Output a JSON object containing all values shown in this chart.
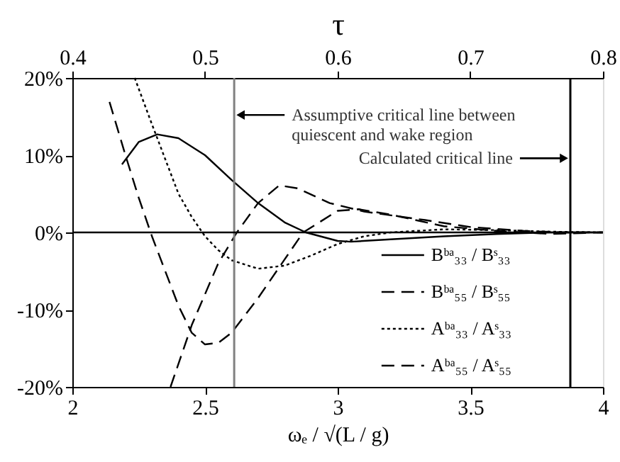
{
  "chart_data": {
    "type": "line",
    "xlabel": "ωₑ / √(L / g)",
    "x2label": "τ",
    "xlim": [
      2,
      4
    ],
    "xticks": [
      2,
      2.5,
      3,
      3.5,
      4
    ],
    "x2lim": [
      0.4,
      0.8
    ],
    "x2ticks": [
      0.4,
      0.5,
      0.6,
      0.7,
      0.8
    ],
    "ylim": [
      -20,
      20
    ],
    "yticks": [
      {
        "value": -20,
        "label": "-20%"
      },
      {
        "value": -10,
        "label": "-10%"
      },
      {
        "value": 0,
        "label": "0%"
      },
      {
        "value": 10,
        "label": "10%"
      },
      {
        "value": 20,
        "label": "20%"
      }
    ],
    "grid": false,
    "legend": "bottom right",
    "series": [
      {
        "name": "Bᵇᵃ₃₃ / Bˢ₃₃",
        "color": "#000000",
        "line_style": "solid",
        "x": [
          2.187,
          2.25,
          2.32,
          2.4,
          2.5,
          2.6,
          2.7,
          2.8,
          2.88,
          3.0,
          3.05,
          3.2,
          3.4,
          3.6,
          3.8,
          4.0
        ],
        "values": [
          8.8,
          11.7,
          12.7,
          12.2,
          10,
          6.8,
          3.8,
          1.3,
          0,
          -1.1,
          -1.2,
          -0.9,
          -0.5,
          -0.2,
          0,
          0
        ]
      },
      {
        "name": "Bᵇᵃ₅₅ / Bˢ₅₅",
        "color": "#000000",
        "line_style": "dashed",
        "x": [
          2.14,
          2.2,
          2.25,
          2.3,
          2.35,
          2.4,
          2.45,
          2.5,
          2.55,
          2.6,
          2.7,
          2.8,
          2.87,
          3.0,
          3.08,
          3.2,
          3.4,
          3.6,
          3.8,
          4.0
        ],
        "values": [
          16.9,
          10,
          4.5,
          -0.5,
          -5,
          -9.5,
          -13,
          -14.5,
          -14.3,
          -13,
          -8.5,
          -3.5,
          0,
          2.8,
          3.0,
          2.3,
          0.8,
          0.2,
          -0.2,
          0
        ]
      },
      {
        "name": "Aᵇᵃ₃₃ / Aˢ₃₃",
        "color": "#000000",
        "line_style": "dotted",
        "x": [
          2.235,
          2.3,
          2.35,
          2.4,
          2.45,
          2.5,
          2.55,
          2.6,
          2.7,
          2.8,
          2.9,
          3.0,
          3.1,
          3.2,
          3.4,
          3.6,
          3.8,
          4.0
        ],
        "values": [
          20,
          14,
          9.5,
          5,
          2,
          -0.5,
          -2.3,
          -3.6,
          -4.7,
          -4.3,
          -3,
          -1.5,
          -0.5,
          0,
          0.4,
          0.3,
          0.1,
          0
        ]
      },
      {
        "name": "Aᵇᵃ₅₅ / Aˢ₅₅",
        "color": "#000000",
        "line_style": "dashed",
        "x": [
          2.37,
          2.45,
          2.55,
          2.62,
          2.7,
          2.78,
          2.85,
          2.97,
          3.1,
          3.33,
          3.5,
          3.7,
          3.85,
          4.0
        ],
        "values": [
          -20,
          -12,
          -4,
          0,
          3.8,
          6.1,
          5.7,
          3.8,
          2.7,
          1.6,
          0.7,
          0.2,
          0,
          0
        ]
      }
    ],
    "ref_lines": [
      {
        "axis": "x",
        "value": 2.61,
        "color": "#808080",
        "label": "Assumptive critical line between quiescent and wake region"
      },
      {
        "axis": "x",
        "value": 3.877,
        "color": "#000000",
        "label": "Calculated critical line"
      },
      {
        "axis": "y",
        "value": 0,
        "color": "#000000"
      }
    ]
  }
}
